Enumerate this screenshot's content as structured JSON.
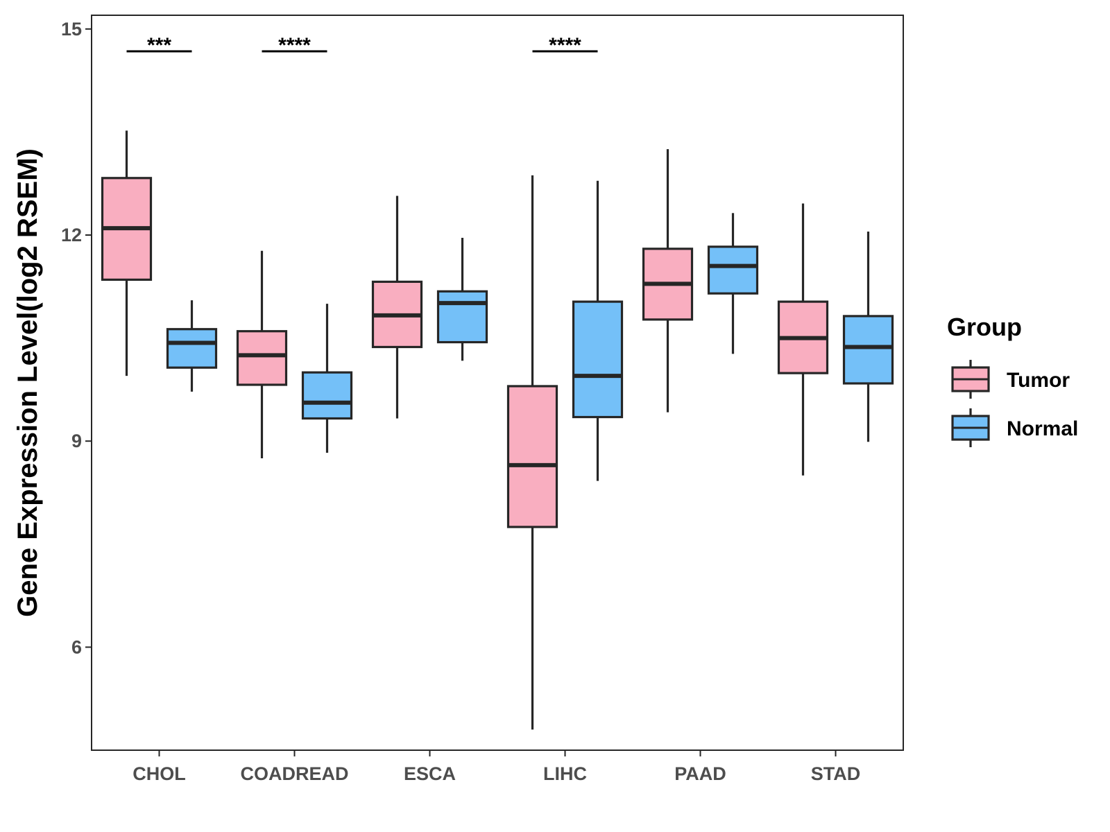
{
  "chart_data": {
    "type": "boxplot",
    "title": "",
    "xlabel": "",
    "ylabel": "Gene Expression Level(log2 RSEM)",
    "ylim": [
      4.5,
      15.2
    ],
    "yticks": [
      6,
      9,
      12,
      15
    ],
    "categories": [
      "CHOL",
      "COADREAD",
      "ESCA",
      "LIHC",
      "PAAD",
      "STAD"
    ],
    "series": [
      {
        "name": "Tumor",
        "color": "#F9AEC0",
        "boxes": [
          {
            "min": 9.95,
            "q1": 11.35,
            "median": 12.1,
            "q3": 12.83,
            "max": 13.52
          },
          {
            "min": 8.75,
            "q1": 9.82,
            "median": 10.25,
            "q3": 10.6,
            "max": 11.77
          },
          {
            "min": 9.33,
            "q1": 10.37,
            "median": 10.83,
            "q3": 11.32,
            "max": 12.57
          },
          {
            "min": 4.8,
            "q1": 7.75,
            "median": 8.65,
            "q3": 9.8,
            "max": 12.87
          },
          {
            "min": 9.42,
            "q1": 10.77,
            "median": 11.29,
            "q3": 11.8,
            "max": 13.25
          },
          {
            "min": 8.5,
            "q1": 9.99,
            "median": 10.5,
            "q3": 11.03,
            "max": 12.46
          }
        ]
      },
      {
        "name": "Normal",
        "color": "#74C0F8",
        "boxes": [
          {
            "min": 9.72,
            "q1": 10.07,
            "median": 10.43,
            "q3": 10.63,
            "max": 11.05
          },
          {
            "min": 8.83,
            "q1": 9.33,
            "median": 9.56,
            "q3": 10.0,
            "max": 11.0
          },
          {
            "min": 10.17,
            "q1": 10.44,
            "median": 11.01,
            "q3": 11.18,
            "max": 11.96
          },
          {
            "min": 8.42,
            "q1": 9.35,
            "median": 9.95,
            "q3": 11.03,
            "max": 12.79
          },
          {
            "min": 10.27,
            "q1": 11.15,
            "median": 11.55,
            "q3": 11.83,
            "max": 12.32
          },
          {
            "min": 8.99,
            "q1": 9.84,
            "median": 10.37,
            "q3": 10.82,
            "max": 12.05
          }
        ]
      }
    ],
    "significance": [
      {
        "category": "CHOL",
        "label": "***"
      },
      {
        "category": "COADREAD",
        "label": "****"
      },
      {
        "category": "LIHC",
        "label": "****"
      }
    ],
    "legend": {
      "title": "Group",
      "position": "right"
    }
  }
}
